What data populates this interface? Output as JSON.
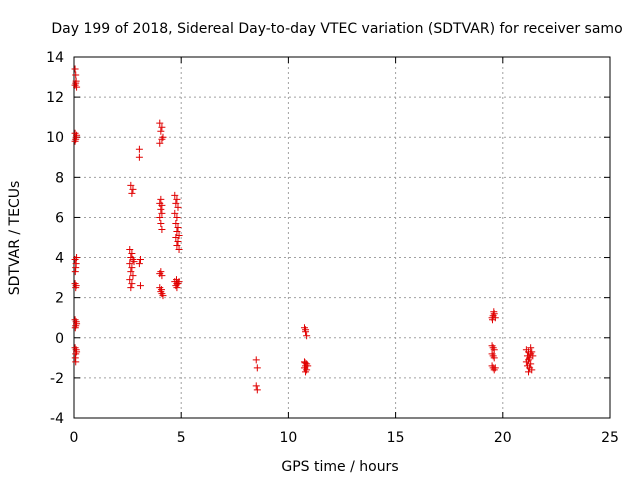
{
  "chart_data": {
    "type": "scatter",
    "title": "Day 199 of 2018, Sidereal Day-to-day VTEC variation (SDTVAR) for receiver samo",
    "xlabel": "GPS time / hours",
    "ylabel": "SDTVAR / TECUs",
    "xlim": [
      0,
      25
    ],
    "ylim": [
      -4,
      14
    ],
    "xticks": [
      0,
      5,
      10,
      15,
      20,
      25
    ],
    "yticks": [
      -4,
      -2,
      0,
      2,
      4,
      6,
      8,
      10,
      12,
      14
    ],
    "grid": true,
    "marker": "plus",
    "color": "#e00000",
    "series": [
      {
        "name": "SDTVAR",
        "points": [
          [
            0.05,
            13.4
          ],
          [
            0.08,
            13.1
          ],
          [
            0.1,
            12.8
          ],
          [
            0.05,
            12.6
          ],
          [
            0.12,
            12.5
          ],
          [
            0.08,
            12.7
          ],
          [
            0.05,
            10.2
          ],
          [
            0.1,
            10.0
          ],
          [
            0.08,
            9.9
          ],
          [
            0.12,
            10.1
          ],
          [
            0.05,
            9.8
          ],
          [
            0.05,
            3.9
          ],
          [
            0.1,
            3.7
          ],
          [
            0.08,
            3.5
          ],
          [
            0.12,
            4.0
          ],
          [
            0.06,
            3.3
          ],
          [
            0.05,
            2.7
          ],
          [
            0.1,
            2.6
          ],
          [
            0.08,
            2.5
          ],
          [
            0.05,
            0.9
          ],
          [
            0.1,
            0.8
          ],
          [
            0.08,
            0.6
          ],
          [
            0.12,
            0.7
          ],
          [
            0.06,
            0.5
          ],
          [
            0.05,
            -0.5
          ],
          [
            0.1,
            -0.6
          ],
          [
            0.08,
            -0.8
          ],
          [
            0.12,
            -0.7
          ],
          [
            0.06,
            -1.0
          ],
          [
            0.08,
            -1.2
          ],
          [
            2.65,
            7.6
          ],
          [
            2.75,
            7.4
          ],
          [
            2.7,
            7.2
          ],
          [
            2.6,
            4.4
          ],
          [
            2.7,
            4.2
          ],
          [
            2.65,
            4.0
          ],
          [
            2.75,
            3.9
          ],
          [
            2.6,
            3.7
          ],
          [
            2.7,
            3.5
          ],
          [
            2.65,
            3.3
          ],
          [
            2.75,
            3.1
          ],
          [
            2.6,
            2.9
          ],
          [
            2.7,
            2.7
          ],
          [
            2.65,
            2.5
          ],
          [
            2.8,
            3.8
          ],
          [
            3.05,
            9.4
          ],
          [
            3.05,
            9.0
          ],
          [
            3.1,
            3.9
          ],
          [
            3.05,
            3.7
          ],
          [
            3.1,
            2.6
          ],
          [
            4.0,
            10.7
          ],
          [
            4.1,
            10.5
          ],
          [
            4.05,
            10.3
          ],
          [
            4.1,
            9.9
          ],
          [
            4.0,
            9.7
          ],
          [
            4.15,
            10.0
          ],
          [
            4.05,
            6.9
          ],
          [
            4.0,
            6.7
          ],
          [
            4.1,
            6.6
          ],
          [
            4.05,
            6.4
          ],
          [
            4.1,
            6.2
          ],
          [
            4.0,
            6.0
          ],
          [
            4.05,
            5.7
          ],
          [
            4.1,
            5.4
          ],
          [
            4.05,
            3.3
          ],
          [
            4.0,
            3.2
          ],
          [
            4.1,
            3.1
          ],
          [
            4.0,
            2.5
          ],
          [
            4.05,
            2.3
          ],
          [
            4.1,
            2.2
          ],
          [
            4.15,
            2.1
          ],
          [
            4.08,
            2.4
          ],
          [
            4.7,
            7.1
          ],
          [
            4.8,
            6.9
          ],
          [
            4.75,
            6.7
          ],
          [
            4.85,
            6.5
          ],
          [
            4.7,
            6.2
          ],
          [
            4.8,
            6.0
          ],
          [
            4.75,
            5.7
          ],
          [
            4.85,
            5.5
          ],
          [
            4.8,
            5.3
          ],
          [
            4.9,
            5.1
          ],
          [
            4.75,
            5.0
          ],
          [
            4.85,
            4.8
          ],
          [
            4.8,
            4.6
          ],
          [
            4.9,
            4.4
          ],
          [
            4.7,
            2.8
          ],
          [
            4.8,
            2.7
          ],
          [
            4.75,
            2.6
          ],
          [
            4.85,
            2.7
          ],
          [
            4.9,
            2.8
          ],
          [
            4.8,
            2.5
          ],
          [
            4.78,
            2.9
          ],
          [
            8.5,
            -1.1
          ],
          [
            8.55,
            -1.5
          ],
          [
            8.5,
            -2.4
          ],
          [
            8.55,
            -2.6
          ],
          [
            10.75,
            0.5
          ],
          [
            10.8,
            0.3
          ],
          [
            10.85,
            0.1
          ],
          [
            10.8,
            0.4
          ],
          [
            10.75,
            -1.2
          ],
          [
            10.85,
            -1.3
          ],
          [
            10.8,
            -1.4
          ],
          [
            10.75,
            -1.5
          ],
          [
            10.85,
            -1.6
          ],
          [
            10.8,
            -1.7
          ],
          [
            10.9,
            -1.4
          ],
          [
            10.78,
            -1.25
          ],
          [
            19.5,
            1.0
          ],
          [
            19.55,
            1.1
          ],
          [
            19.6,
            1.2
          ],
          [
            19.65,
            1.0
          ],
          [
            19.58,
            1.3
          ],
          [
            19.52,
            0.9
          ],
          [
            19.5,
            -0.4
          ],
          [
            19.55,
            -0.5
          ],
          [
            19.6,
            -0.6
          ],
          [
            19.5,
            -0.8
          ],
          [
            19.55,
            -0.9
          ],
          [
            19.6,
            -1.0
          ],
          [
            19.5,
            -1.4
          ],
          [
            19.55,
            -1.5
          ],
          [
            19.6,
            -1.6
          ],
          [
            19.65,
            -1.5
          ],
          [
            21.1,
            -0.6
          ],
          [
            21.2,
            -0.7
          ],
          [
            21.3,
            -0.8
          ],
          [
            21.15,
            -0.9
          ],
          [
            21.25,
            -1.0
          ],
          [
            21.35,
            -0.7
          ],
          [
            21.2,
            -1.1
          ],
          [
            21.3,
            -1.3
          ],
          [
            21.15,
            -1.4
          ],
          [
            21.25,
            -1.5
          ],
          [
            21.35,
            -1.6
          ],
          [
            21.2,
            -1.7
          ],
          [
            21.3,
            -0.5
          ],
          [
            21.1,
            -1.2
          ],
          [
            21.4,
            -0.9
          ]
        ]
      }
    ]
  }
}
